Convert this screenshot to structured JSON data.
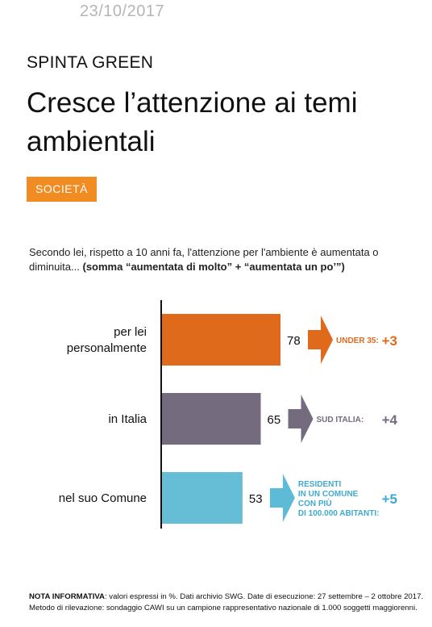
{
  "header": {
    "date": "23/10/2017",
    "kicker": "SPINTA GREEN",
    "headline": "Cresce l’attenzione ai temi ambientali",
    "tag": "SOCIETÀ"
  },
  "question": {
    "text": "Secondo lei, rispetto a 10 anni fa, l'attenzione per l'ambiente è aumentata o diminuita... ",
    "bold": "(somma “aumentata di molto” + “aumentata un po’”)"
  },
  "chart_data": {
    "type": "bar",
    "orientation": "horizontal",
    "categories": [
      [
        "per lei",
        "personalmente"
      ],
      [
        "in Italia"
      ],
      [
        "nel suo Comune"
      ]
    ],
    "values": [
      78,
      65,
      53
    ],
    "unit": "%",
    "xlim": [
      0,
      100
    ],
    "colors": [
      "#e06a1c",
      "#756b7e",
      "#66bed6"
    ],
    "callouts": [
      {
        "label_lines": [
          "UNDER 35:"
        ],
        "delta": "+3",
        "color": "#e06a1c",
        "arrow_color": "#e06a1c"
      },
      {
        "label_lines": [
          "SUD ITALIA:"
        ],
        "delta": "+4",
        "color": "#756b7e",
        "arrow_color": "#756b7e"
      },
      {
        "label_lines": [
          "RESIDENTI",
          "IN UN COMUNE",
          "CON PIÙ",
          "DI 100.000 ABITANTI:"
        ],
        "delta": "+5",
        "color": "#3fa9d0",
        "arrow_color": "#5dbbd8"
      }
    ],
    "grid": false
  },
  "note": {
    "bold": "NOTA INFORMATIVA",
    "line1": ": valori espressi in %. Dati archivio SWG. Date di esecuzione: 27 settembre – 2 ottobre 2017.",
    "line2": "Metodo di rilevazione: sondaggio CAWI su un campione rappresentativo nazionale di 1.000 soggetti maggiorenni."
  }
}
